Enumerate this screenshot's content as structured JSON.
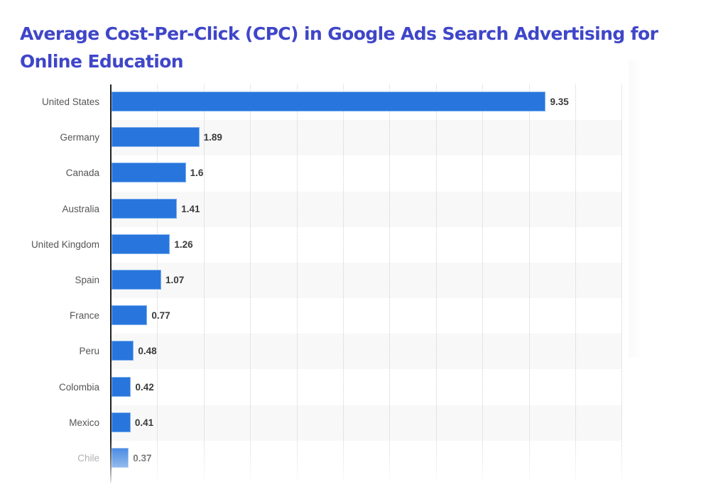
{
  "title": "Average Cost-Per-Click (CPC) in Google Ads Search Advertising for Online Education",
  "colors": {
    "title": "#3f46c8",
    "bar": "#2876dd",
    "stripe": "#f8f8f8",
    "category_text": "#555555",
    "value_text": "#3a3a3a"
  },
  "chart_data": {
    "type": "bar",
    "orientation": "horizontal",
    "title": "Average Cost-Per-Click (CPC) in Google Ads Search Advertising for Online Education",
    "xlabel": "",
    "ylabel": "",
    "categories": [
      "United States",
      "Germany",
      "Canada",
      "Australia",
      "United Kingdom",
      "Spain",
      "France",
      "Peru",
      "Colombia",
      "Mexico",
      "Chile"
    ],
    "values": [
      9.35,
      1.89,
      1.6,
      1.41,
      1.26,
      1.07,
      0.77,
      0.48,
      0.42,
      0.41,
      0.37
    ],
    "value_labels": [
      "9.35",
      "1.89",
      "1.6",
      "1.41",
      "1.26",
      "1.07",
      "0.77",
      "0.48",
      "0.42",
      "0.41",
      "0.37"
    ],
    "xlim": [
      0,
      11
    ],
    "grid": {
      "vertical": true,
      "style": "dotted",
      "interval": 1
    },
    "legend": null
  }
}
